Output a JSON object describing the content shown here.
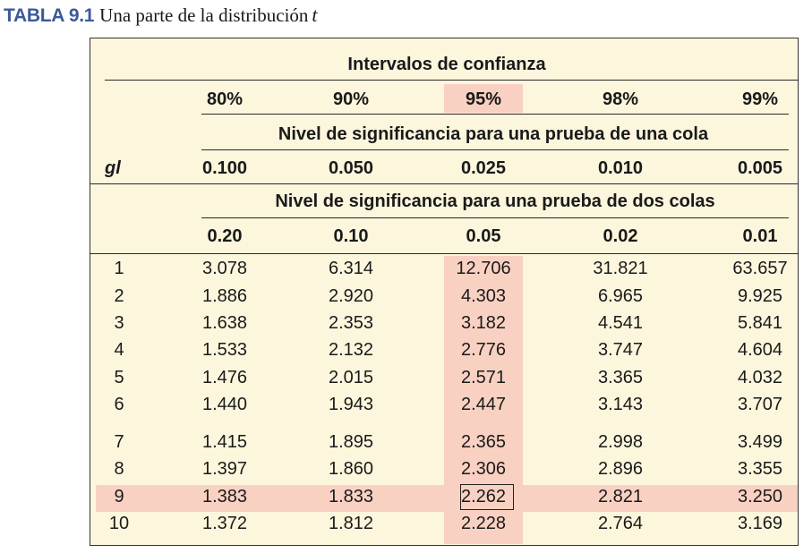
{
  "caption": {
    "label": "TABLA 9.1",
    "text": "Una parte de la distribución",
    "t": "t"
  },
  "header": {
    "confidence_title": "Intervalos de confianza",
    "confidence_levels": [
      "80%",
      "90%",
      "95%",
      "98%",
      "99%"
    ],
    "one_tail_title": "Nivel de significancia para una prueba de una cola",
    "gl_label": "gl",
    "one_tail_levels": [
      "0.100",
      "0.050",
      "0.025",
      "0.010",
      "0.005"
    ],
    "two_tail_title": "Nivel de significancia para una prueba de dos colas",
    "two_tail_levels": [
      "0.20",
      "0.10",
      "0.05",
      "0.02",
      "0.01"
    ]
  },
  "rows": [
    {
      "gl": "1",
      "values": [
        "3.078",
        "6.314",
        "12.706",
        "31.821",
        "63.657"
      ]
    },
    {
      "gl": "2",
      "values": [
        "1.886",
        "2.920",
        "4.303",
        "6.965",
        "9.925"
      ]
    },
    {
      "gl": "3",
      "values": [
        "1.638",
        "2.353",
        "3.182",
        "4.541",
        "5.841"
      ]
    },
    {
      "gl": "4",
      "values": [
        "1.533",
        "2.132",
        "2.776",
        "3.747",
        "4.604"
      ]
    },
    {
      "gl": "5",
      "values": [
        "1.476",
        "2.015",
        "2.571",
        "3.365",
        "4.032"
      ]
    },
    {
      "gl": "6",
      "values": [
        "1.440",
        "1.943",
        "2.447",
        "3.143",
        "3.707"
      ]
    },
    {
      "gl": "7",
      "values": [
        "1.415",
        "1.895",
        "2.365",
        "2.998",
        "3.499"
      ]
    },
    {
      "gl": "8",
      "values": [
        "1.397",
        "1.860",
        "2.306",
        "2.896",
        "3.355"
      ]
    },
    {
      "gl": "9",
      "values": [
        "1.383",
        "1.833",
        "2.262",
        "2.821",
        "3.250"
      ]
    },
    {
      "gl": "10",
      "values": [
        "1.372",
        "1.812",
        "2.228",
        "2.764",
        "3.169"
      ]
    }
  ],
  "highlight": {
    "column_index": 2,
    "row_gl": "9",
    "color": "#f9d1c2",
    "background": "#fcf6dd",
    "caption_color": "#3c5a98"
  }
}
